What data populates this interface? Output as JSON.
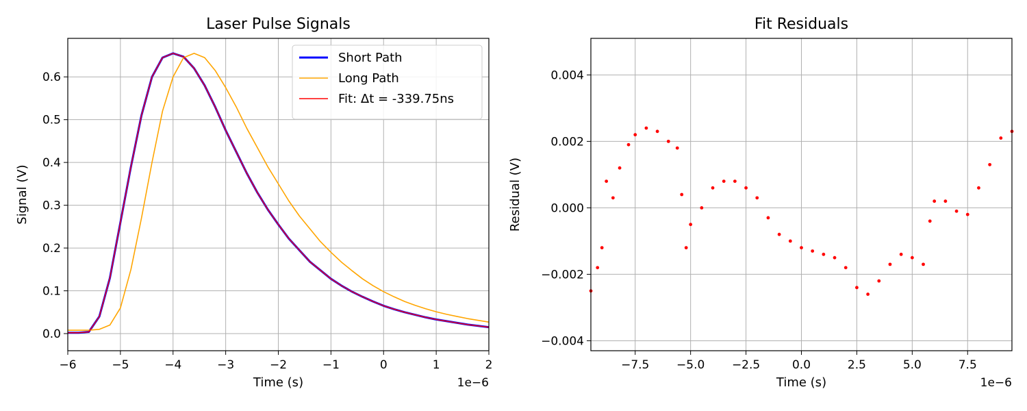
{
  "chart_data": [
    {
      "type": "line",
      "title": "Laser Pulse Signals",
      "xlabel": "Time (s)",
      "ylabel": "Signal (V)",
      "x_offset_label": "1e−6",
      "xlim": [
        -6,
        2
      ],
      "ylim": [
        -0.04,
        0.69
      ],
      "xticks": [
        -6,
        -5,
        -4,
        -3,
        -2,
        -1,
        0,
        1,
        2
      ],
      "xtick_labels": [
        "−6",
        "−5",
        "−4",
        "−3",
        "−2",
        "−1",
        "0",
        "1",
        "2"
      ],
      "yticks": [
        0.0,
        0.1,
        0.2,
        0.3,
        0.4,
        0.5,
        0.6
      ],
      "ytick_labels": [
        "0.0",
        "0.1",
        "0.2",
        "0.3",
        "0.4",
        "0.5",
        "0.6"
      ],
      "grid": true,
      "legend": "top-right",
      "series": [
        {
          "name": "Short Path",
          "color": "#0000ff",
          "x": [
            -6.0,
            -5.8,
            -5.6,
            -5.4,
            -5.2,
            -5.0,
            -4.8,
            -4.6,
            -4.4,
            -4.2,
            -4.0,
            -3.8,
            -3.6,
            -3.4,
            -3.2,
            -3.0,
            -2.8,
            -2.6,
            -2.4,
            -2.2,
            -2.0,
            -1.8,
            -1.6,
            -1.4,
            -1.2,
            -1.0,
            -0.8,
            -0.6,
            -0.4,
            -0.2,
            0.0,
            0.2,
            0.4,
            0.6,
            0.8,
            1.0,
            1.2,
            1.4,
            1.6,
            1.8,
            2.0
          ],
          "y": [
            0.002,
            0.002,
            0.004,
            0.04,
            0.13,
            0.26,
            0.39,
            0.51,
            0.6,
            0.645,
            0.655,
            0.647,
            0.62,
            0.58,
            0.53,
            0.475,
            0.425,
            0.375,
            0.33,
            0.29,
            0.255,
            0.222,
            0.195,
            0.168,
            0.148,
            0.128,
            0.112,
            0.098,
            0.086,
            0.075,
            0.065,
            0.057,
            0.05,
            0.044,
            0.038,
            0.033,
            0.029,
            0.025,
            0.021,
            0.018,
            0.015
          ]
        },
        {
          "name": "Long Path",
          "color": "#ffa500",
          "x": [
            -6.0,
            -5.8,
            -5.6,
            -5.4,
            -5.2,
            -5.0,
            -4.8,
            -4.6,
            -4.4,
            -4.2,
            -4.0,
            -3.8,
            -3.6,
            -3.4,
            -3.2,
            -3.0,
            -2.8,
            -2.6,
            -2.4,
            -2.2,
            -2.0,
            -1.8,
            -1.6,
            -1.4,
            -1.2,
            -1.0,
            -0.8,
            -0.6,
            -0.4,
            -0.2,
            0.0,
            0.2,
            0.4,
            0.6,
            0.8,
            1.0,
            1.2,
            1.4,
            1.6,
            1.8,
            2.0
          ],
          "y": [
            0.008,
            0.008,
            0.008,
            0.01,
            0.02,
            0.06,
            0.15,
            0.27,
            0.4,
            0.52,
            0.6,
            0.645,
            0.655,
            0.645,
            0.615,
            0.575,
            0.53,
            0.48,
            0.435,
            0.39,
            0.35,
            0.31,
            0.275,
            0.245,
            0.215,
            0.19,
            0.167,
            0.147,
            0.128,
            0.112,
            0.098,
            0.086,
            0.075,
            0.066,
            0.058,
            0.051,
            0.045,
            0.04,
            0.035,
            0.031,
            0.027
          ]
        },
        {
          "name": "Fit: Δt = -339.75ns",
          "color": "#ff0000",
          "x": [
            -6.0,
            -5.8,
            -5.6,
            -5.4,
            -5.2,
            -5.0,
            -4.8,
            -4.6,
            -4.4,
            -4.2,
            -4.0,
            -3.8,
            -3.6,
            -3.4,
            -3.2,
            -3.0,
            -2.8,
            -2.6,
            -2.4,
            -2.2,
            -2.0,
            -1.8,
            -1.6,
            -1.4,
            -1.2,
            -1.0,
            -0.8,
            -0.6,
            -0.4,
            -0.2,
            0.0,
            0.2,
            0.4,
            0.6,
            0.8,
            1.0,
            1.2,
            1.4,
            1.6,
            1.8,
            2.0
          ],
          "y": [
            0.002,
            0.002,
            0.004,
            0.04,
            0.13,
            0.26,
            0.39,
            0.51,
            0.6,
            0.645,
            0.655,
            0.647,
            0.62,
            0.58,
            0.53,
            0.475,
            0.425,
            0.375,
            0.33,
            0.29,
            0.255,
            0.222,
            0.195,
            0.168,
            0.148,
            0.128,
            0.112,
            0.098,
            0.086,
            0.075,
            0.065,
            0.057,
            0.05,
            0.044,
            0.038,
            0.033,
            0.029,
            0.025,
            0.021,
            0.018,
            0.015
          ]
        }
      ]
    },
    {
      "type": "scatter",
      "title": "Fit Residuals",
      "xlabel": "Time (s)",
      "ylabel": "Residual (V)",
      "x_offset_label": "1e−6",
      "xlim": [
        -9.5,
        9.5
      ],
      "ylim": [
        -0.0043,
        0.0051
      ],
      "xticks": [
        -7.5,
        -5.0,
        -2.5,
        0.0,
        2.5,
        5.0,
        7.5
      ],
      "xtick_labels": [
        "−7.5",
        "−5.0",
        "−2.5",
        "0.0",
        "2.5",
        "5.0",
        "7.5"
      ],
      "yticks": [
        -0.004,
        -0.002,
        0.0,
        0.002,
        0.004
      ],
      "ytick_labels": [
        "−0.004",
        "−0.002",
        "0.000",
        "0.002",
        "0.004"
      ],
      "grid": true,
      "color": "#ff0000",
      "x": [
        -9.5,
        -9.2,
        -9.0,
        -8.8,
        -8.5,
        -8.2,
        -7.8,
        -7.5,
        -7.0,
        -6.5,
        -6.0,
        -5.6,
        -5.4,
        -5.2,
        -5.0,
        -4.5,
        -4.0,
        -3.5,
        -3.0,
        -2.5,
        -2.0,
        -1.5,
        -1.0,
        -0.5,
        0.0,
        0.5,
        1.0,
        1.5,
        2.0,
        2.5,
        3.0,
        3.5,
        4.0,
        4.5,
        5.0,
        5.5,
        5.8,
        6.0,
        6.5,
        7.0,
        7.5,
        8.0,
        8.5,
        9.0,
        9.5
      ],
      "y": [
        -0.0025,
        -0.0018,
        -0.0012,
        0.0008,
        0.0003,
        0.0012,
        0.0019,
        0.0022,
        0.0024,
        0.0023,
        0.002,
        0.0018,
        0.0004,
        -0.0012,
        -0.0005,
        0.0,
        0.0006,
        0.0008,
        0.0008,
        0.0006,
        0.0003,
        -0.0003,
        -0.0008,
        -0.001,
        -0.0012,
        -0.0013,
        -0.0014,
        -0.0015,
        -0.0018,
        -0.0024,
        -0.0026,
        -0.0022,
        -0.0017,
        -0.0014,
        -0.0015,
        -0.0017,
        -0.0004,
        0.0002,
        0.0002,
        -0.0001,
        -0.0002,
        0.0006,
        0.0013,
        0.0021,
        0.0023
      ]
    }
  ]
}
